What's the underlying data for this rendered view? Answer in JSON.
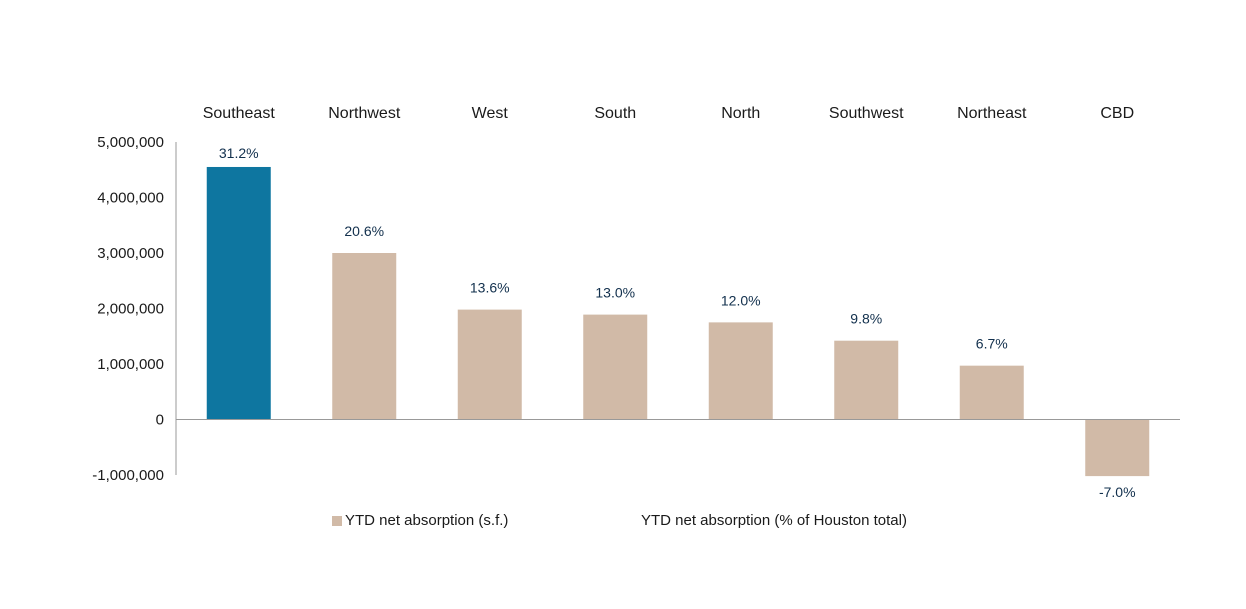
{
  "chart_data": {
    "type": "bar",
    "categories": [
      "Southeast",
      "Northwest",
      "West",
      "South",
      "North",
      "Southwest",
      "Northeast",
      "CBD"
    ],
    "series": [
      {
        "name": "YTD net absorption (s.f.)",
        "values": [
          4550000,
          3000000,
          1980000,
          1890000,
          1750000,
          1420000,
          970000,
          -1020000
        ]
      },
      {
        "name": "YTD net absorption (% of Houston total)",
        "values": [
          31.2,
          20.6,
          13.6,
          13.0,
          12.0,
          9.8,
          6.7,
          -7.0
        ],
        "labels": [
          "31.2%",
          "20.6%",
          "13.6%",
          "13.0%",
          "12.0%",
          "9.8%",
          "6.7%",
          "-7.0%"
        ]
      }
    ],
    "ylim": [
      -1000000,
      5000000
    ],
    "yticks": [
      5000000,
      4000000,
      3000000,
      2000000,
      1000000,
      0,
      -1000000
    ],
    "ytick_labels": [
      "5,000,000",
      "4,000,000",
      "3,000,000",
      "2,000,000",
      "1,000,000",
      "0",
      "-1,000,000"
    ],
    "title": "",
    "xlabel": "",
    "ylabel": "",
    "grid": false,
    "legend_position": "bottom",
    "colors": {
      "bar": "#d1baa7",
      "highlight": "#0e76a0",
      "label": "#12304d",
      "axis": "#999999"
    }
  },
  "legend": {
    "item1": "YTD net absorption (s.f.)",
    "item2": "YTD net absorption (% of Houston total)"
  }
}
